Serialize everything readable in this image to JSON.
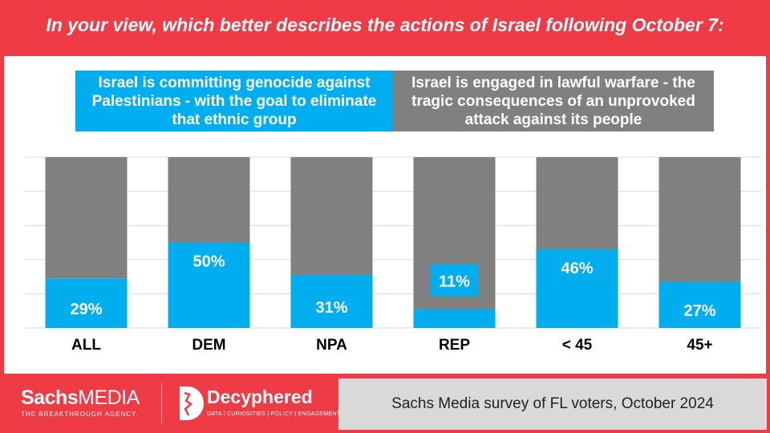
{
  "title": "In your view, which better describes the actions of Israel following October 7:",
  "legend": {
    "blue": "Israel is committing genocide against Palestinians - with the goal to eliminate that ethnic group",
    "gray": "Israel is engaged in lawful warfare - the tragic consequences of an unprovoked attack against its people"
  },
  "colors": {
    "blue": "#00aeef",
    "gray": "#808080",
    "accent": "#ee3b46",
    "footer": "#d9d9d9"
  },
  "chart_data": {
    "type": "bar",
    "stacked": true,
    "categories": [
      "ALL",
      "DEM",
      "NPA",
      "REP",
      "< 45",
      "45+"
    ],
    "series": [
      {
        "name": "Israel is committing genocide against Palestinians - with the goal to eliminate that ethnic group",
        "values": [
          29,
          50,
          31,
          11,
          46,
          27
        ],
        "labels": [
          "29%",
          "50%",
          "31%",
          "11%",
          "46%",
          "27%"
        ]
      },
      {
        "name": "Israel is engaged in lawful warfare - the tragic consequences of an unprovoked attack against its people",
        "values": [
          71,
          50,
          69,
          89,
          54,
          73
        ]
      }
    ],
    "ylim": [
      0,
      100
    ],
    "grid": true,
    "legend_position": "top"
  },
  "footer": {
    "source": "Sachs Media survey of FL voters, October 2024",
    "logo_sachs_bold": "Sachs",
    "logo_sachs_light": "MEDIA",
    "logo_sachs_tagline": "THE BREAKTHROUGH AGENCY.",
    "logo_decyphered": "Decyphered",
    "logo_decyphered_tagline": "DATA | CURIOSITIES | POLICY | ENGAGEMENT"
  }
}
